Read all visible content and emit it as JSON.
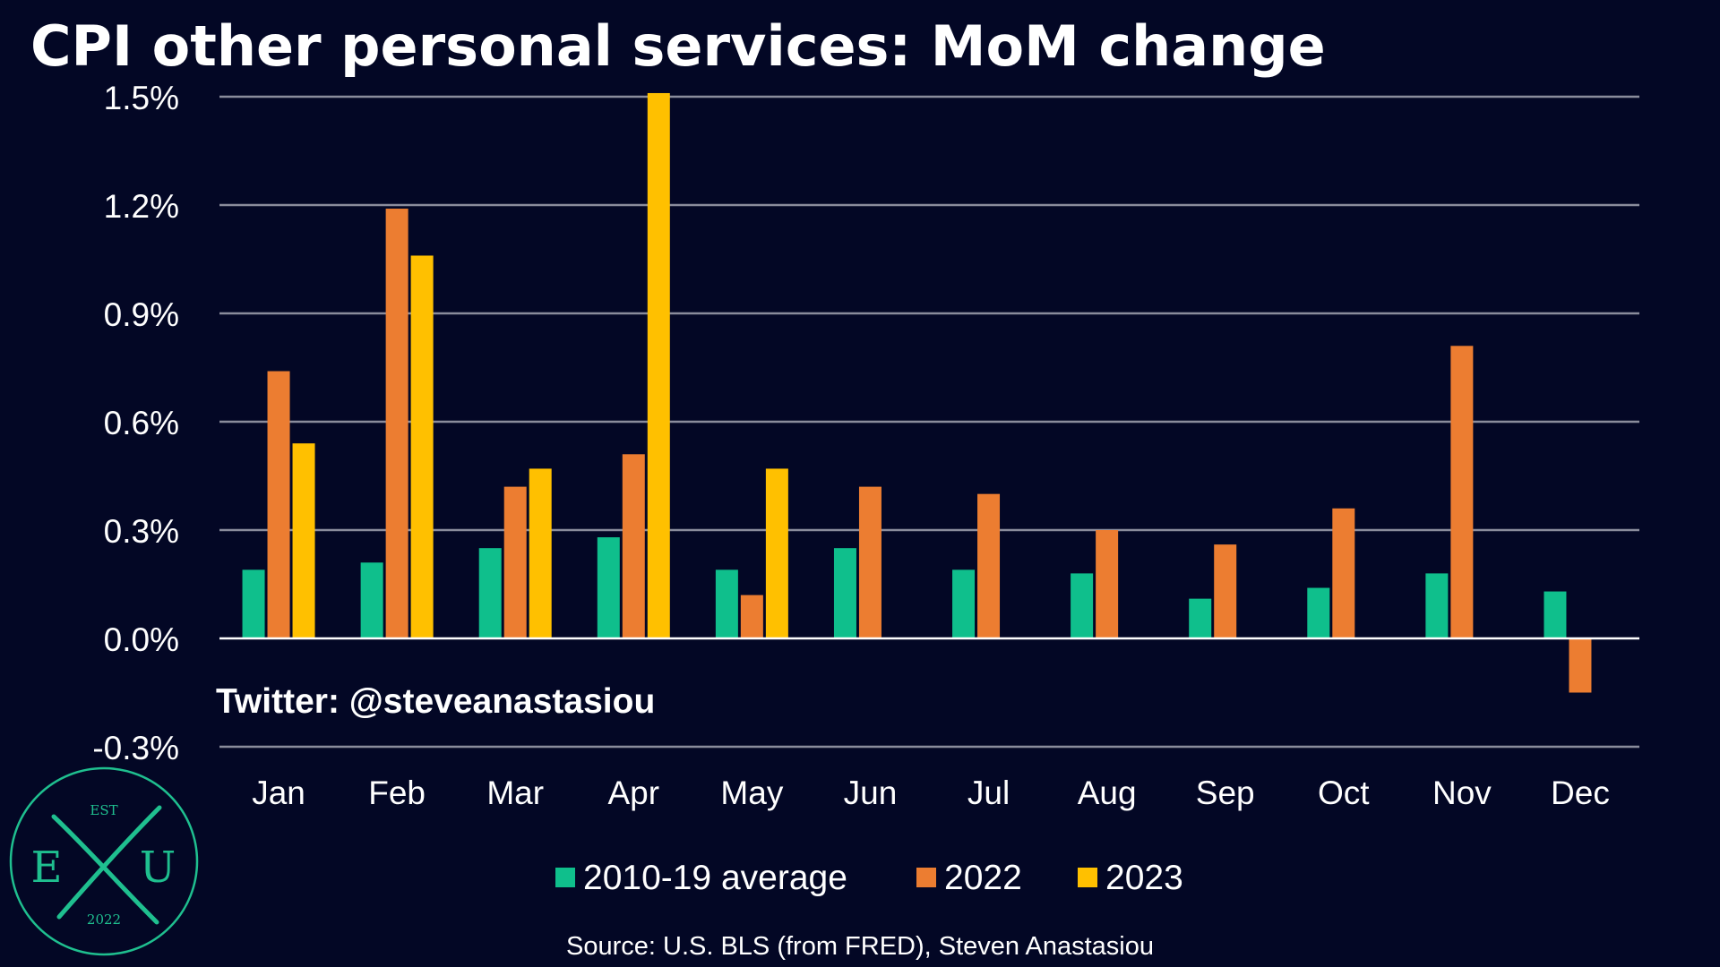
{
  "watermark": "Twitter: @steveanastasiou",
  "source": "Source: U.S. BLS (from FRED), Steven Anastasiou",
  "logo": {
    "top_text": "EST",
    "left_letter": "E",
    "right_letter": "U",
    "bottom_text": "2022",
    "color": "#1fbf8f"
  },
  "colors": {
    "background": "#030725",
    "grid": "#8a8c9c",
    "zero_line": "#ffffff"
  },
  "chart_data": {
    "type": "bar",
    "title": "CPI other personal services: MoM change",
    "categories": [
      "Jan",
      "Feb",
      "Mar",
      "Apr",
      "May",
      "Jun",
      "Jul",
      "Aug",
      "Sep",
      "Oct",
      "Nov",
      "Dec"
    ],
    "series": [
      {
        "name": "2010-19 average",
        "color": "#0fbf8c",
        "values": [
          0.19,
          0.21,
          0.25,
          0.28,
          0.19,
          0.25,
          0.19,
          0.18,
          0.11,
          0.14,
          0.18,
          0.13
        ]
      },
      {
        "name": "2022",
        "color": "#ec7d31",
        "values": [
          0.74,
          1.19,
          0.42,
          0.51,
          0.12,
          0.42,
          0.4,
          0.3,
          0.26,
          0.36,
          0.81,
          -0.15
        ]
      },
      {
        "name": "2023",
        "color": "#ffc000",
        "values": [
          0.54,
          1.06,
          0.47,
          1.51,
          0.47,
          null,
          null,
          null,
          null,
          null,
          null,
          null
        ]
      }
    ],
    "yticks": [
      "1.5%",
      "1.2%",
      "0.9%",
      "0.6%",
      "0.3%",
      "0.0%",
      "-0.3%"
    ],
    "ytick_values": [
      1.5,
      1.2,
      0.9,
      0.6,
      0.3,
      0.0,
      -0.3
    ],
    "ylim": [
      -0.3,
      1.5
    ],
    "grid": true,
    "legend_position": "bottom-center"
  }
}
